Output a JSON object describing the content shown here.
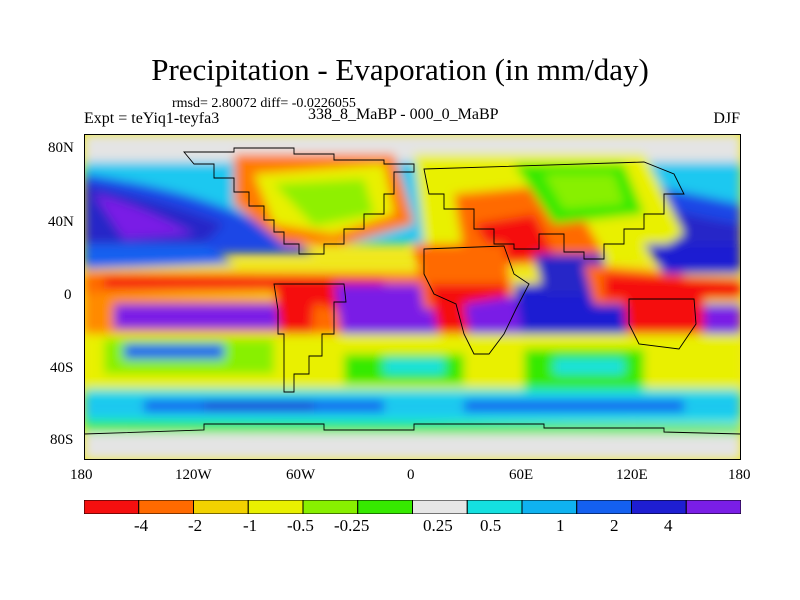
{
  "title": "Precipitation - Evaporation (in mm/day)",
  "stats": "rmsd= 2.80072 diff= -0.0226055",
  "experiment": "Expt = teYiq1-teyfa3",
  "period": "338_8_MaBP - 000_0_MaBP",
  "season": "DJF",
  "lat_ticks": [
    "80N",
    "40N",
    "0",
    "40S",
    "80S"
  ],
  "lon_ticks": [
    "180",
    "120W",
    "60W",
    "0",
    "60E",
    "120E",
    "180"
  ],
  "colorbar": {
    "labels": [
      "-4",
      "-2",
      "-1",
      "-0.5",
      "-0.25",
      "0.25",
      "0.5",
      "1",
      "2",
      "4"
    ],
    "colors": [
      "#f50f0f",
      "#ff6a00",
      "#f2d200",
      "#e9f000",
      "#88f000",
      "#36ea00",
      "#e6e6e6",
      "#14e0e0",
      "#0fb2f0",
      "#1460f0",
      "#1e1ed2",
      "#7a1ee6"
    ]
  },
  "colors": {
    "ocean_background": "#f0e81e",
    "grey_land": "#e0e0e0"
  }
}
